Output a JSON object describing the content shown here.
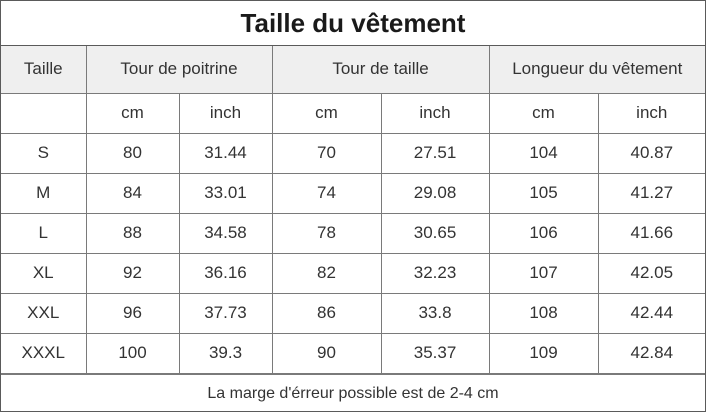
{
  "title": "Taille du vêtement",
  "headers": {
    "size": "Taille",
    "chest": "Tour de poitrine",
    "waist": "Tour de taille",
    "length": "Longueur du vêtement"
  },
  "units": [
    "cm",
    "inch",
    "cm",
    "inch",
    "cm",
    "inch"
  ],
  "rows": [
    {
      "size": "S",
      "chest_cm": "80",
      "chest_in": "31.44",
      "waist_cm": "70",
      "waist_in": "27.51",
      "length_cm": "104",
      "length_in": "40.87"
    },
    {
      "size": "M",
      "chest_cm": "84",
      "chest_in": "33.01",
      "waist_cm": "74",
      "waist_in": "29.08",
      "length_cm": "105",
      "length_in": "41.27"
    },
    {
      "size": "L",
      "chest_cm": "88",
      "chest_in": "34.58",
      "waist_cm": "78",
      "waist_in": "30.65",
      "length_cm": "106",
      "length_in": "41.66"
    },
    {
      "size": "XL",
      "chest_cm": "92",
      "chest_in": "36.16",
      "waist_cm": "82",
      "waist_in": "32.23",
      "length_cm": "107",
      "length_in": "42.05"
    },
    {
      "size": "XXL",
      "chest_cm": "96",
      "chest_in": "37.73",
      "waist_cm": "86",
      "waist_in": "33.8",
      "length_cm": "108",
      "length_in": "42.44"
    },
    {
      "size": "XXXL",
      "chest_cm": "100",
      "chest_in": "39.3",
      "waist_cm": "90",
      "waist_in": "35.37",
      "length_cm": "109",
      "length_in": "42.84"
    }
  ],
  "footer": "La marge d'érreur possible est de 2-4 cm",
  "colors": {
    "header_bg": "#efefef",
    "border": "#7a7a7a",
    "text": "#333333"
  }
}
